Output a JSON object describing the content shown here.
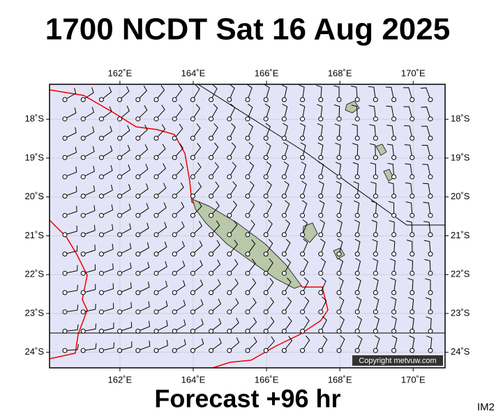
{
  "header": {
    "title": "1700 NCDT Sat 16 Aug 2025"
  },
  "map": {
    "xlim": [
      160.08,
      170.87
    ],
    "ylim": [
      -24.4,
      -17.1
    ],
    "xticks": [
      {
        "value": 162,
        "label": "162˚E"
      },
      {
        "value": 164,
        "label": "164˚E"
      },
      {
        "value": 166,
        "label": "166˚E"
      },
      {
        "value": 168,
        "label": "168˚E"
      },
      {
        "value": 170,
        "label": "170˚E"
      }
    ],
    "yticks": [
      {
        "value": -18,
        "label": "18˚S"
      },
      {
        "value": -19,
        "label": "19˚S"
      },
      {
        "value": -20,
        "label": "20˚S"
      },
      {
        "value": -21,
        "label": "21˚S"
      },
      {
        "value": -22,
        "label": "22˚S"
      },
      {
        "value": -23,
        "label": "23˚S"
      },
      {
        "value": -24,
        "label": "24˚S"
      }
    ],
    "credit": "Copyright metvuw.com"
  },
  "footer": {
    "forecast": "Forecast +96 hr",
    "code": "IM2"
  }
}
